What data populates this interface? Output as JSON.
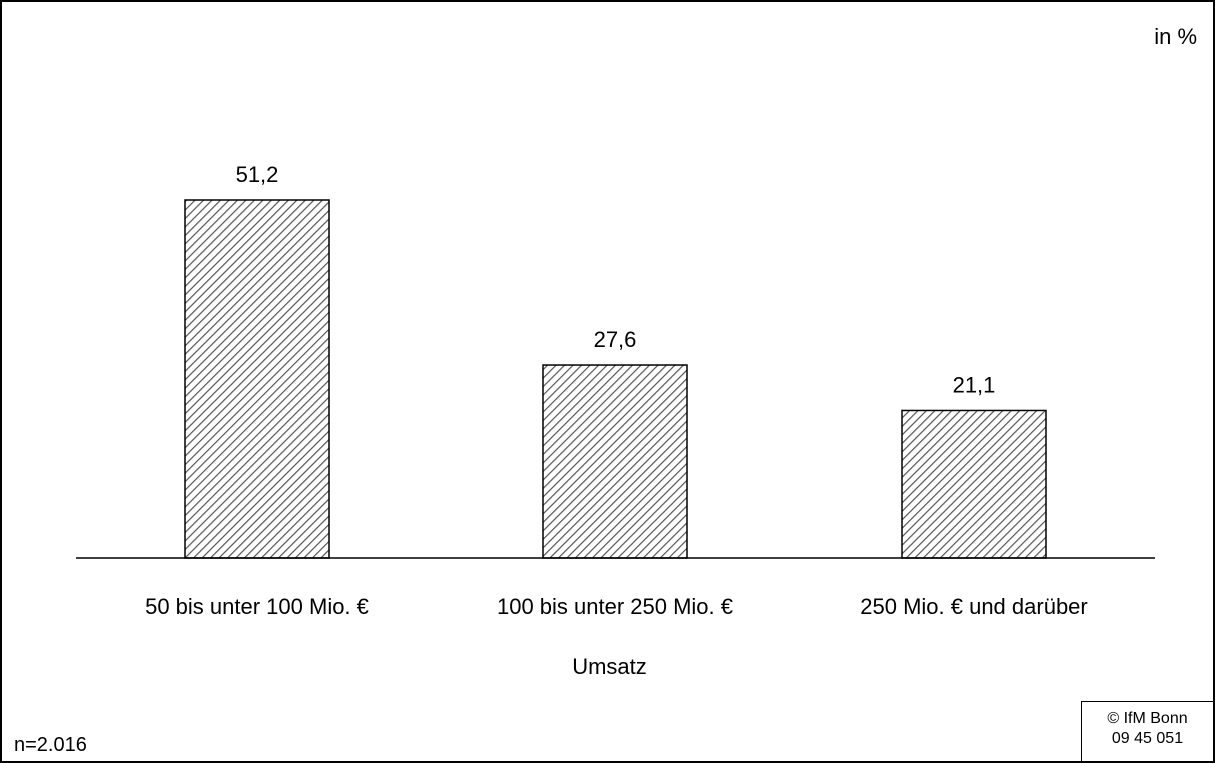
{
  "chart_data": {
    "type": "bar",
    "unit_label": "in %",
    "categories": [
      "50 bis unter 100 Mio. €",
      "100 bis unter 250 Mio. €",
      "250 Mio. € und darüber"
    ],
    "values": [
      51.2,
      27.6,
      21.1
    ],
    "value_labels": [
      "51,2",
      "27,6",
      "21,1"
    ],
    "xlabel": "Umsatz",
    "ylabel": "",
    "ylim": [
      0,
      60
    ],
    "grid": false,
    "legend": "none",
    "bar_fill": "hatched-diagonal",
    "colors": {
      "bar_stroke": "#000000",
      "hatch": "#555555",
      "background": "#ffffff"
    }
  },
  "footer": {
    "sample_size": "n=2.016",
    "copyright_line1": "© IfM Bonn",
    "copyright_line2": "09 45 051"
  }
}
